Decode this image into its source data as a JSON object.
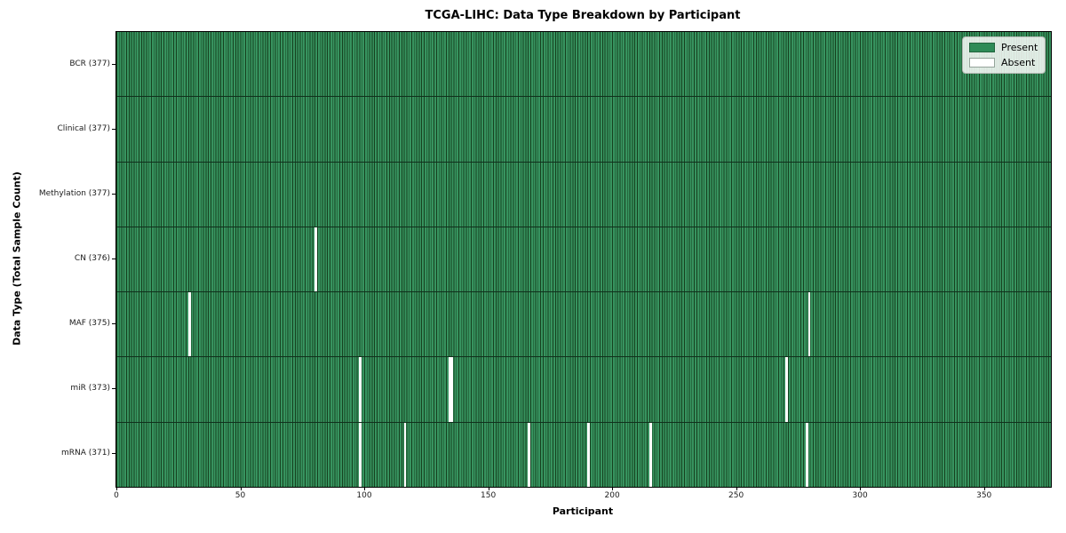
{
  "chart_data": {
    "type": "heatmap",
    "title": "TCGA-LIHC: Data Type Breakdown by Participant",
    "xlabel": "Participant",
    "ylabel": "Data Type (Total Sample Count)",
    "n_participants": 377,
    "x_ticks": [
      0,
      50,
      100,
      150,
      200,
      250,
      300,
      350
    ],
    "x_range": [
      0,
      377
    ],
    "grid": false,
    "rows": [
      {
        "name": "BCR",
        "label": "BCR (377)",
        "total": 377,
        "absent_participants": []
      },
      {
        "name": "Clinical",
        "label": "Clinical (377)",
        "total": 377,
        "absent_participants": []
      },
      {
        "name": "Methylation",
        "label": "Methylation (377)",
        "total": 377,
        "absent_participants": []
      },
      {
        "name": "CN",
        "label": "CN (376)",
        "total": 376,
        "absent_participants": [
          80
        ]
      },
      {
        "name": "MAF",
        "label": "MAF (375)",
        "total": 375,
        "absent_participants": [
          29,
          279
        ]
      },
      {
        "name": "miR",
        "label": "miR (373)",
        "total": 373,
        "absent_participants": [
          98,
          134,
          135,
          270
        ]
      },
      {
        "name": "mRNA",
        "label": "mRNA (371)",
        "total": 371,
        "absent_participants": [
          98,
          116,
          166,
          190,
          215,
          278
        ]
      }
    ],
    "legend": {
      "position": "upper right",
      "entries": [
        {
          "label": "Present",
          "color": "#2e8b57"
        },
        {
          "label": "Absent",
          "color": "#ffffff"
        }
      ]
    },
    "colors": {
      "present": "#2e8b57",
      "absent": "#ffffff",
      "cell_edge": "#16411f",
      "axis": "#000000",
      "background": "#ffffff"
    }
  }
}
